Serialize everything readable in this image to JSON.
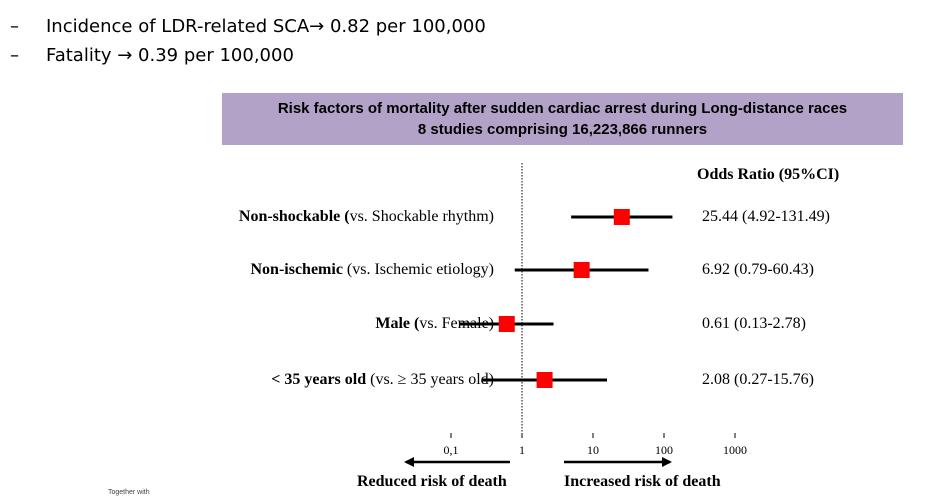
{
  "bullets": [
    {
      "marker": "–",
      "text": "Incidence of LDR-related SCA→ 0.82 per 100,000"
    },
    {
      "marker": "–",
      "text": "Fatality → 0.39 per 100,000"
    }
  ],
  "chart_data": {
    "type": "forest",
    "title": "Risk factors of mortality after sudden cardiac arrest during Long-distance races",
    "subtitle": "8 studies comprising 16,223,866 runners",
    "column_header": "Odds Ratio (95%CI)",
    "x_scale": "log",
    "xlim": [
      0.1,
      1000
    ],
    "reference_line": 1,
    "x_ticks": [
      {
        "value": 0.1,
        "label": "0,1"
      },
      {
        "value": 1,
        "label": "1"
      },
      {
        "value": 10,
        "label": "10"
      },
      {
        "value": 100,
        "label": "100"
      },
      {
        "value": 1000,
        "label": "1000"
      }
    ],
    "rows": [
      {
        "bold": "Non-shockable (",
        "rest": "vs. Shockable rhythm)",
        "or": 25.44,
        "low": 4.92,
        "high": 131.49,
        "text": "25.44 (4.92-131.49)"
      },
      {
        "bold": "Non-ischemic ",
        "rest": "(vs. Ischemic etiology)",
        "or": 6.92,
        "low": 0.79,
        "high": 60.43,
        "text": "6.92 (0.79-60.43)"
      },
      {
        "bold": "Male (",
        "rest": "vs. Female)",
        "or": 0.61,
        "low": 0.13,
        "high": 2.78,
        "text": "0.61 (0.13-2.78)"
      },
      {
        "bold": "< 35 years old ",
        "rest": "(vs. ≥ 35 years old)",
        "or": 2.08,
        "low": 0.27,
        "high": 15.76,
        "text": "2.08 (0.27-15.76)"
      }
    ],
    "left_direction": "Reduced risk of death",
    "right_direction": "Increased risk of death",
    "marker_color": "#ff0000",
    "banner_color": "#b2a2c7"
  },
  "footer_note": "Together with"
}
